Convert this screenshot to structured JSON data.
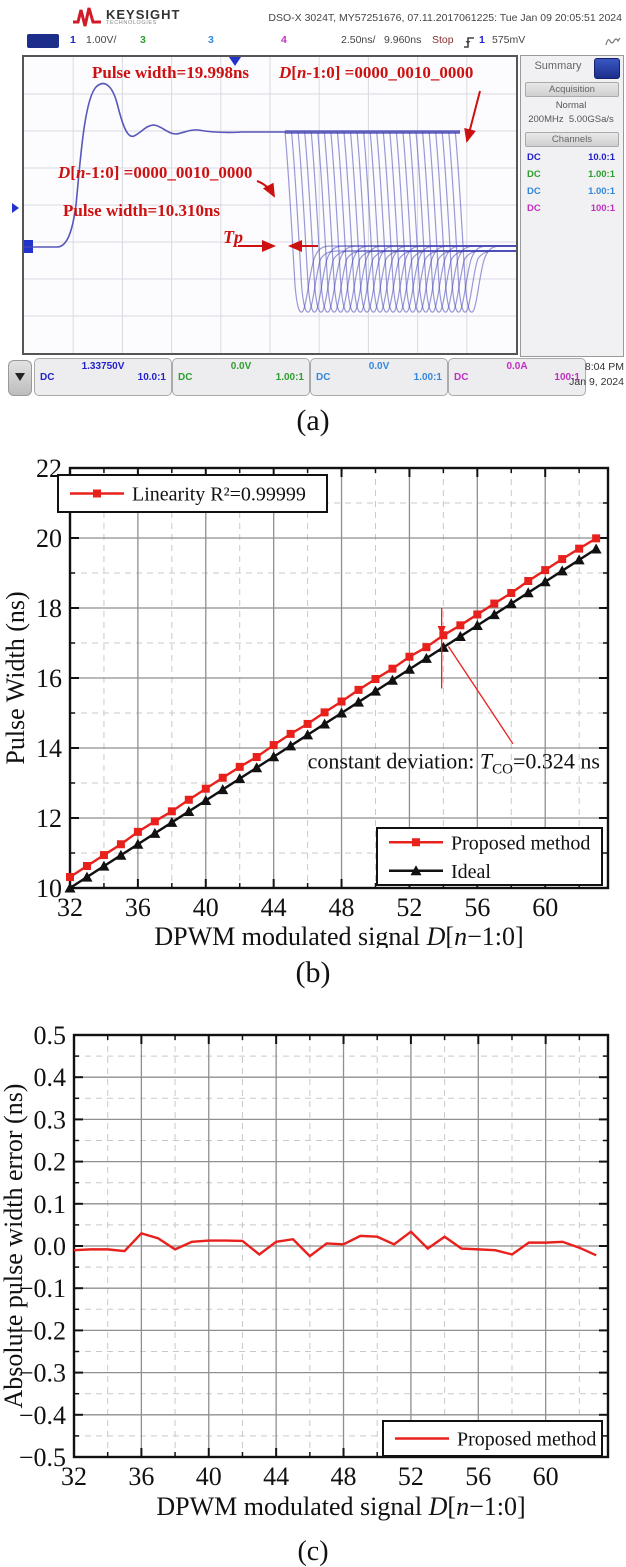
{
  "scope": {
    "brand": "KEYSIGHT",
    "brand_sub": "TECHNOLOGIES",
    "title": "DSO-X 3024T, MY57251676, 07.11.2017061225: Tue Jan 09 20:05:51 2024",
    "toolbar": {
      "ch1_num": "1",
      "ch1_scale": "1.00V/",
      "ch2_num": "3",
      "ch3_num": "3",
      "ch4_num": "4",
      "timebase": "2.50ns/",
      "delay": "9.960ns",
      "run_state": "Stop",
      "trig_source": "1",
      "trig_level": "575mV"
    },
    "annotations": {
      "pulse_wide": "Pulse width=19.998ns",
      "pulse_narrow": "Pulse width=10.310ns",
      "d_code_parts": [
        {
          "t": "D",
          "i": true
        },
        {
          "t": "[",
          "i": false
        },
        {
          "t": "n",
          "i": true
        },
        {
          "t": "-1:0] =0000_0010_0000",
          "i": false
        }
      ],
      "tp_parts": [
        {
          "t": "Tp",
          "i": true
        }
      ]
    },
    "sidebar": {
      "title": "Summary",
      "acq_header": "Acquisition",
      "acq_mode": "Normal",
      "bandwidth": "200MHz",
      "sample_rate": "5.00GSa/s",
      "ch_header": "Channels",
      "channels": [
        {
          "coupling": "DC",
          "ratio": "10.0:1",
          "color": "#2222cc"
        },
        {
          "coupling": "DC",
          "ratio": "1.00:1",
          "color": "#2e9e2e"
        },
        {
          "coupling": "DC",
          "ratio": "1.00:1",
          "color": "#3388dd"
        },
        {
          "coupling": "DC",
          "ratio": "100:1",
          "color": "#c030c0"
        }
      ]
    },
    "bottombar": {
      "channels": [
        {
          "value": "1.33750V",
          "coupling": "DC",
          "ratio": "10.0:1",
          "color": "#2222cc"
        },
        {
          "value": "0.0V",
          "coupling": "DC",
          "ratio": "1.00:1",
          "color": "#2e9e2e"
        },
        {
          "value": "0.0V",
          "coupling": "DC",
          "ratio": "1.00:1",
          "color": "#3388dd"
        },
        {
          "value": "0.0A",
          "coupling": "DC",
          "ratio": "100:1",
          "color": "#c030c0"
        }
      ],
      "time": "8:04 PM",
      "date": "Jan 9, 2024"
    }
  },
  "captions": {
    "a": "(a)",
    "b": "(b)",
    "c": "(c)"
  },
  "chart_data": [
    {
      "type": "line",
      "id": "b",
      "x": [
        32,
        33,
        34,
        35,
        36,
        37,
        38,
        39,
        40,
        41,
        42,
        43,
        44,
        45,
        46,
        47,
        48,
        49,
        50,
        51,
        52,
        53,
        54,
        55,
        56,
        57,
        58,
        59,
        60,
        61,
        62,
        63
      ],
      "series": [
        {
          "name": "Ideal",
          "color": "#111111",
          "marker": "triangle",
          "values": [
            10.0,
            10.3125,
            10.625,
            10.9375,
            11.25,
            11.5625,
            11.875,
            12.1875,
            12.5,
            12.8125,
            13.125,
            13.4375,
            13.75,
            14.0625,
            14.375,
            14.6875,
            15.0,
            15.3125,
            15.625,
            15.9375,
            16.25,
            16.5625,
            16.875,
            17.1875,
            17.5,
            17.8125,
            18.125,
            18.4375,
            18.75,
            19.0625,
            19.375,
            19.6875
          ]
        },
        {
          "name": "Proposed method",
          "color": "#e8211d",
          "marker": "square",
          "values": [
            10.314,
            10.629,
            10.941,
            11.25,
            11.604,
            11.905,
            12.191,
            12.521,
            12.837,
            13.15,
            13.461,
            13.742,
            14.084,
            14.403,
            14.688,
            15.018,
            15.328,
            15.661,
            15.971,
            16.266,
            16.608,
            16.881,
            17.221,
            17.506,
            17.816,
            18.127,
            18.429,
            18.771,
            19.083,
            19.398,
            19.696,
            19.99
          ]
        }
      ],
      "xlabel_parts": [
        {
          "t": "DPWM modulated signal ",
          "i": false
        },
        {
          "t": "D",
          "i": true
        },
        {
          "t": "[",
          "i": false
        },
        {
          "t": "n",
          "i": true
        },
        {
          "t": "−1:0]",
          "i": false
        }
      ],
      "ylabel": "Pulse Width (ns)",
      "xlim": [
        32,
        63.7
      ],
      "ylim": [
        10,
        22
      ],
      "xticks": [
        32,
        36,
        40,
        44,
        48,
        52,
        56,
        60
      ],
      "xtick_labels": [
        "32",
        "36",
        "40",
        "44",
        "48",
        "52",
        "56",
        "60"
      ],
      "yticks": [
        10,
        12,
        14,
        16,
        18,
        20,
        22
      ],
      "ytick_labels": [
        "10",
        "12",
        "14",
        "16",
        "18",
        "20",
        "22"
      ],
      "xticks_minor": [
        34,
        38,
        42,
        46,
        50,
        54,
        58,
        62
      ],
      "yticks_minor": [
        11,
        13,
        15,
        17,
        19,
        21
      ],
      "grid": true,
      "legend_top": {
        "items": [
          {
            "label": "Linearity R²=0.99999",
            "color": "#e8211d",
            "marker": "square"
          }
        ]
      },
      "legend_bottom": {
        "items": [
          {
            "label": "Proposed method",
            "color": "#e8211d",
            "marker": "square"
          },
          {
            "label": "Ideal",
            "color": "#111111",
            "marker": "triangle"
          }
        ]
      },
      "annotation": {
        "pre": "constant deviation: ",
        "var": "T",
        "sub": "CO",
        "post": "=0.324 ns",
        "text_xy": [
          46.0,
          13.42
        ],
        "pointer": [
          [
            54.3,
            16.9
          ],
          [
            58.1,
            14.12
          ]
        ],
        "gap_x": 53.9,
        "gap_y": [
          15.7,
          18.0
        ]
      }
    },
    {
      "type": "line",
      "id": "c",
      "x": [
        32,
        33,
        34,
        35,
        36,
        37,
        38,
        39,
        40,
        41,
        42,
        43,
        44,
        45,
        46,
        47,
        48,
        49,
        50,
        51,
        52,
        53,
        54,
        55,
        56,
        57,
        58,
        59,
        60,
        61,
        62,
        63
      ],
      "series": [
        {
          "name": "Proposed method",
          "color": "#e8211d",
          "marker": "none",
          "values": [
            -0.01,
            -0.008,
            -0.008,
            -0.012,
            0.03,
            0.018,
            -0.008,
            0.01,
            0.013,
            0.013,
            0.012,
            -0.02,
            0.01,
            0.016,
            -0.024,
            0.006,
            0.004,
            0.024,
            0.022,
            0.004,
            0.034,
            -0.006,
            0.022,
            -0.006,
            -0.008,
            -0.01,
            -0.02,
            0.008,
            0.008,
            0.01,
            -0.004,
            -0.022
          ]
        }
      ],
      "xlabel_parts": [
        {
          "t": "DPWM modulated signal ",
          "i": false
        },
        {
          "t": "D",
          "i": true
        },
        {
          "t": "[",
          "i": false
        },
        {
          "t": "n",
          "i": true
        },
        {
          "t": "−1:0]",
          "i": false
        }
      ],
      "ylabel": "Absolute pulse width error (ns)",
      "xlim": [
        32,
        63.7
      ],
      "ylim": [
        -0.5,
        0.5
      ],
      "xticks": [
        32,
        36,
        40,
        44,
        48,
        52,
        56,
        60
      ],
      "xtick_labels": [
        "32",
        "36",
        "40",
        "44",
        "48",
        "52",
        "56",
        "60"
      ],
      "yticks": [
        0.5,
        0.4,
        0.3,
        0.2,
        0.1,
        0.0,
        -0.1,
        -0.2,
        -0.3,
        -0.4,
        -0.5
      ],
      "ytick_labels": [
        "0.5",
        "0.4",
        "0.3",
        "0.2",
        "0.1",
        "0.0",
        "−0.1",
        "−0.2",
        "−0.3",
        "−0.4",
        "−0.5"
      ],
      "xticks_minor": [
        34,
        38,
        42,
        46,
        50,
        54,
        58,
        62
      ],
      "yticks_minor": [
        0.45,
        0.35,
        0.25,
        0.15,
        0.05,
        -0.05,
        -0.15,
        -0.25,
        -0.35,
        -0.45
      ],
      "grid": true,
      "legend_bottom": {
        "items": [
          {
            "label": "Proposed method",
            "color": "#e8211d",
            "marker": "none"
          }
        ]
      }
    }
  ]
}
